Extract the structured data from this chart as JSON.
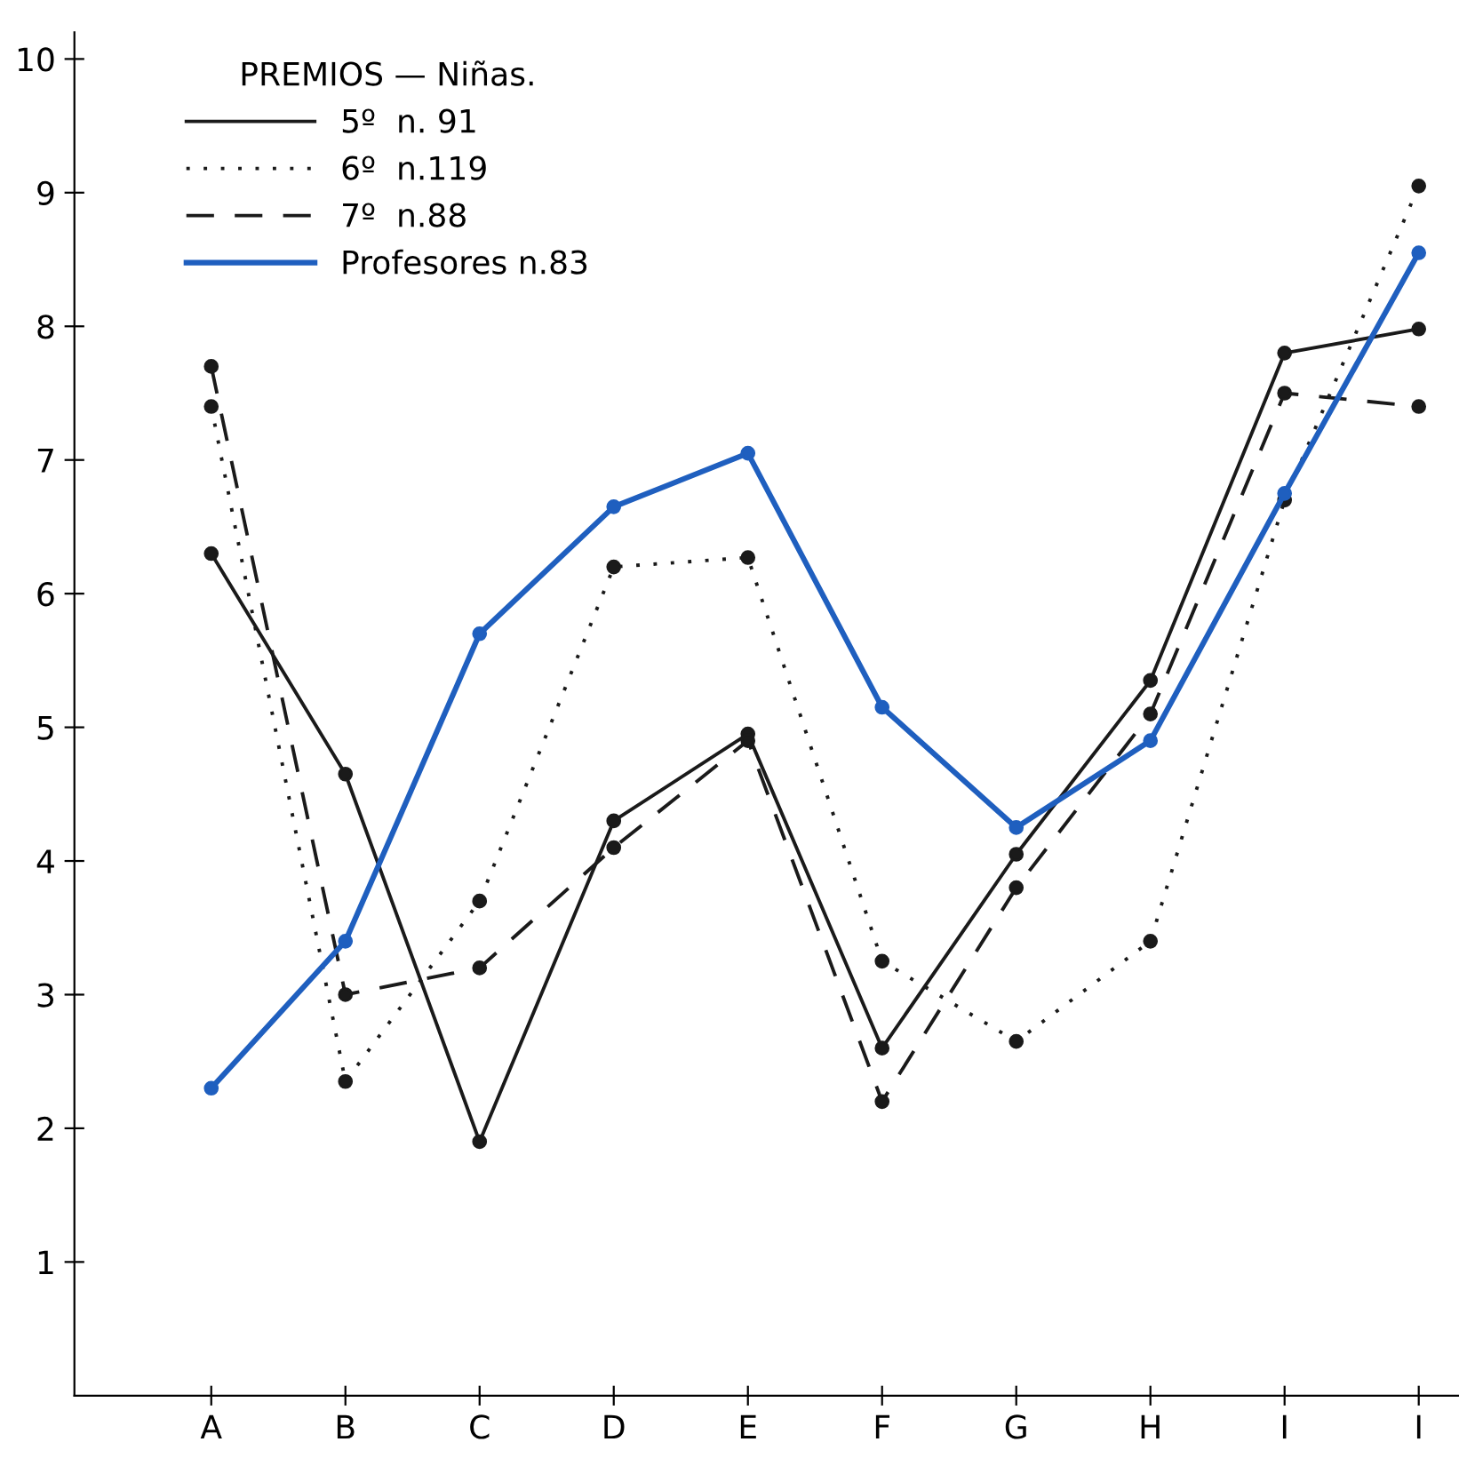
{
  "chart_data": {
    "type": "line",
    "legend_title": "PREMIOS — Niñas.",
    "categories": [
      "A",
      "B",
      "C",
      "D",
      "E",
      "F",
      "G",
      "H",
      "I",
      "I"
    ],
    "series": [
      {
        "name": "5º  n. 91",
        "color": "#1a1a1a",
        "line_style": "solid",
        "values": [
          6.3,
          4.65,
          1.9,
          4.3,
          4.95,
          2.6,
          4.05,
          5.35,
          7.8,
          7.98
        ]
      },
      {
        "name": "6º  n.119",
        "color": "#1a1a1a",
        "line_style": "dotted",
        "values": [
          7.4,
          2.35,
          3.7,
          6.2,
          6.27,
          3.25,
          2.65,
          3.4,
          6.7,
          9.05
        ]
      },
      {
        "name": "7º  n.88",
        "color": "#1a1a1a",
        "line_style": "dashed",
        "values": [
          7.7,
          3.0,
          3.2,
          4.1,
          4.9,
          2.2,
          3.8,
          5.1,
          7.5,
          7.4
        ]
      },
      {
        "name": "Profesores n.83",
        "color": "#1f5fbf",
        "line_style": "solid",
        "values": [
          2.3,
          3.4,
          5.7,
          6.65,
          7.05,
          5.15,
          4.25,
          4.9,
          6.75,
          8.55
        ]
      }
    ],
    "ylim": [
      0,
      10.2
    ],
    "yticks": [
      1,
      2,
      3,
      4,
      5,
      6,
      7,
      8,
      9,
      10
    ],
    "marker": "circle",
    "grid": false,
    "legend": "top left"
  }
}
